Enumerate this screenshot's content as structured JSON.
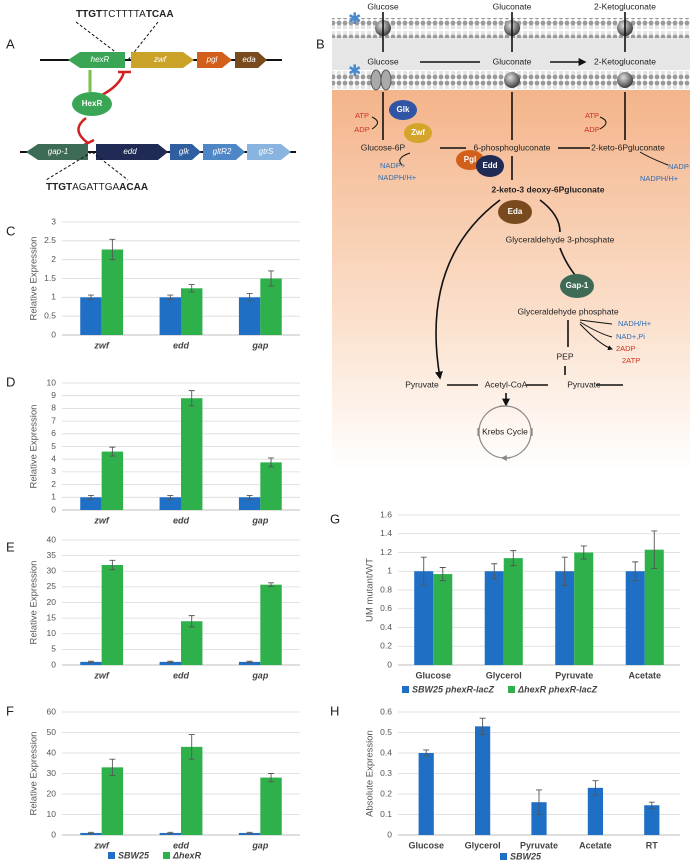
{
  "diagram_a": {
    "panel": "A",
    "top_sequence": [
      "TTGT",
      "TCTTTTA",
      "TCAA"
    ],
    "genes_top": [
      "hexR",
      "zwf",
      "pgl",
      "eda"
    ],
    "regulator": "HexR",
    "genes_bottom": [
      "gap-1",
      "edd",
      "glk",
      "gltR2",
      "gtrS"
    ],
    "bottom_sequence": [
      "TTGT",
      "AGATTGA",
      "ACAA"
    ]
  },
  "diagram_b": {
    "panel": "B",
    "outer_substrates": [
      "Glucose",
      "Gluconate",
      "2-Ketogluconate"
    ],
    "periplasm_substrates": [
      "Glucose",
      "Gluconate",
      "2-Ketogluconate"
    ],
    "enzymes": [
      "Glk",
      "Zwf",
      "Pgl",
      "Edd",
      "Eda",
      "Gap-1"
    ],
    "cofactors": [
      "ATP",
      "ADP",
      "ATP",
      "ADP",
      "NADP+",
      "NADPH/H+",
      "NADP+",
      "NADPH/H+",
      "NADH/H+",
      "NAD+,Pi",
      "2ADP",
      "2ATP"
    ],
    "metabolites": [
      "Glucose-6P",
      "6-phosphogluconate",
      "2-keto-6Pgluconate",
      "2-keto-3 deoxy-6Pgluconate",
      "Glyceraldehyde 3-phosphate",
      "Glyceraldehyde phosphate",
      "PEP",
      "Pyruvate",
      "Acetyl-CoA",
      "Pyruvate",
      "Krebs Cycle"
    ]
  },
  "chart_data": [
    {
      "panel": "C",
      "type": "bar",
      "y_label": "Relative Expression",
      "categories": [
        "zwf",
        "edd",
        "gap"
      ],
      "italic_categories": true,
      "grid": true,
      "ylim": [
        0,
        3
      ],
      "yticks": [
        0,
        0.5,
        1,
        1.5,
        2,
        2.5,
        3
      ],
      "series": [
        {
          "color": "#1f6fc5",
          "values": [
            1,
            1,
            1
          ],
          "errors": [
            0.06,
            0.06,
            0.1
          ]
        },
        {
          "color": "#2eb04b",
          "values": [
            2.27,
            1.24,
            1.5
          ],
          "errors": [
            0.27,
            0.1,
            0.2
          ]
        }
      ]
    },
    {
      "panel": "D",
      "type": "bar",
      "y_label": "Relative Expression",
      "categories": [
        "zwf",
        "edd",
        "gap"
      ],
      "italic_categories": true,
      "grid": true,
      "ylim": [
        0,
        10
      ],
      "yticks": [
        0,
        1,
        2,
        3,
        4,
        5,
        6,
        7,
        8,
        9,
        10
      ],
      "series": [
        {
          "color": "#1f6fc5",
          "values": [
            1,
            1,
            1
          ],
          "errors": [
            0.15,
            0.15,
            0.15
          ]
        },
        {
          "color": "#2eb04b",
          "values": [
            4.6,
            8.8,
            3.75
          ],
          "errors": [
            0.35,
            0.6,
            0.35
          ]
        }
      ]
    },
    {
      "panel": "E",
      "type": "bar",
      "y_label": "Relative Expression",
      "categories": [
        "zwf",
        "edd",
        "gap"
      ],
      "italic_categories": true,
      "grid": true,
      "ylim": [
        0,
        40
      ],
      "yticks": [
        0,
        5,
        10,
        15,
        20,
        25,
        30,
        35,
        40
      ],
      "series": [
        {
          "color": "#1f6fc5",
          "values": [
            1,
            1,
            1
          ],
          "errors": [
            0.2,
            0.2,
            0.2
          ]
        },
        {
          "color": "#2eb04b",
          "values": [
            32,
            14,
            25.7
          ],
          "errors": [
            1.5,
            1.8,
            0.6
          ]
        }
      ]
    },
    {
      "panel": "F",
      "type": "bar",
      "y_label": "Relative Expression",
      "categories": [
        "zwf",
        "edd",
        "gap"
      ],
      "italic_categories": true,
      "grid": true,
      "ylim": [
        0,
        60
      ],
      "yticks": [
        0,
        10,
        20,
        30,
        40,
        50,
        60
      ],
      "series": [
        {
          "name": "SBW25",
          "color": "#1f6fc5",
          "values": [
            1,
            1,
            1
          ],
          "errors": [
            0.3,
            0.3,
            0.3
          ]
        },
        {
          "name": "ΔhexR",
          "color": "#2eb04b",
          "values": [
            33,
            43,
            28
          ],
          "errors": [
            4,
            6,
            2
          ]
        }
      ]
    },
    {
      "panel": "G",
      "type": "bar",
      "y_label": "UM mutant/WT",
      "categories": [
        "Glucose",
        "Glycerol",
        "Pyruvate",
        "Acetate"
      ],
      "italic_categories": false,
      "grid": true,
      "ylim": [
        0,
        1.6
      ],
      "yticks": [
        0,
        0.2,
        0.4,
        0.6,
        0.8,
        1,
        1.2,
        1.4,
        1.6
      ],
      "series": [
        {
          "name": "SBW25 phexR-lacZ",
          "color": "#1f6fc5",
          "values": [
            1,
            1,
            1,
            1
          ],
          "errors": [
            0.15,
            0.08,
            0.15,
            0.1
          ]
        },
        {
          "name": "ΔhexR phexR-lacZ",
          "color": "#2eb04b",
          "values": [
            0.97,
            1.14,
            1.2,
            1.23
          ],
          "errors": [
            0.07,
            0.08,
            0.07,
            0.2
          ]
        }
      ]
    },
    {
      "panel": "H",
      "type": "bar",
      "y_label": "Absolute Expression",
      "categories": [
        "Glucose",
        "Glycerol",
        "Pyruvate",
        "Acetate",
        "RT"
      ],
      "italic_categories": false,
      "grid": true,
      "ylim": [
        0,
        0.6
      ],
      "yticks": [
        0,
        0.1,
        0.2,
        0.3,
        0.4,
        0.5,
        0.6
      ],
      "series": [
        {
          "name": "SBW25",
          "color": "#1f6fc5",
          "values": [
            0.4,
            0.53,
            0.16,
            0.23,
            0.145
          ],
          "errors": [
            0.015,
            0.04,
            0.06,
            0.035,
            0.015
          ]
        }
      ]
    }
  ]
}
